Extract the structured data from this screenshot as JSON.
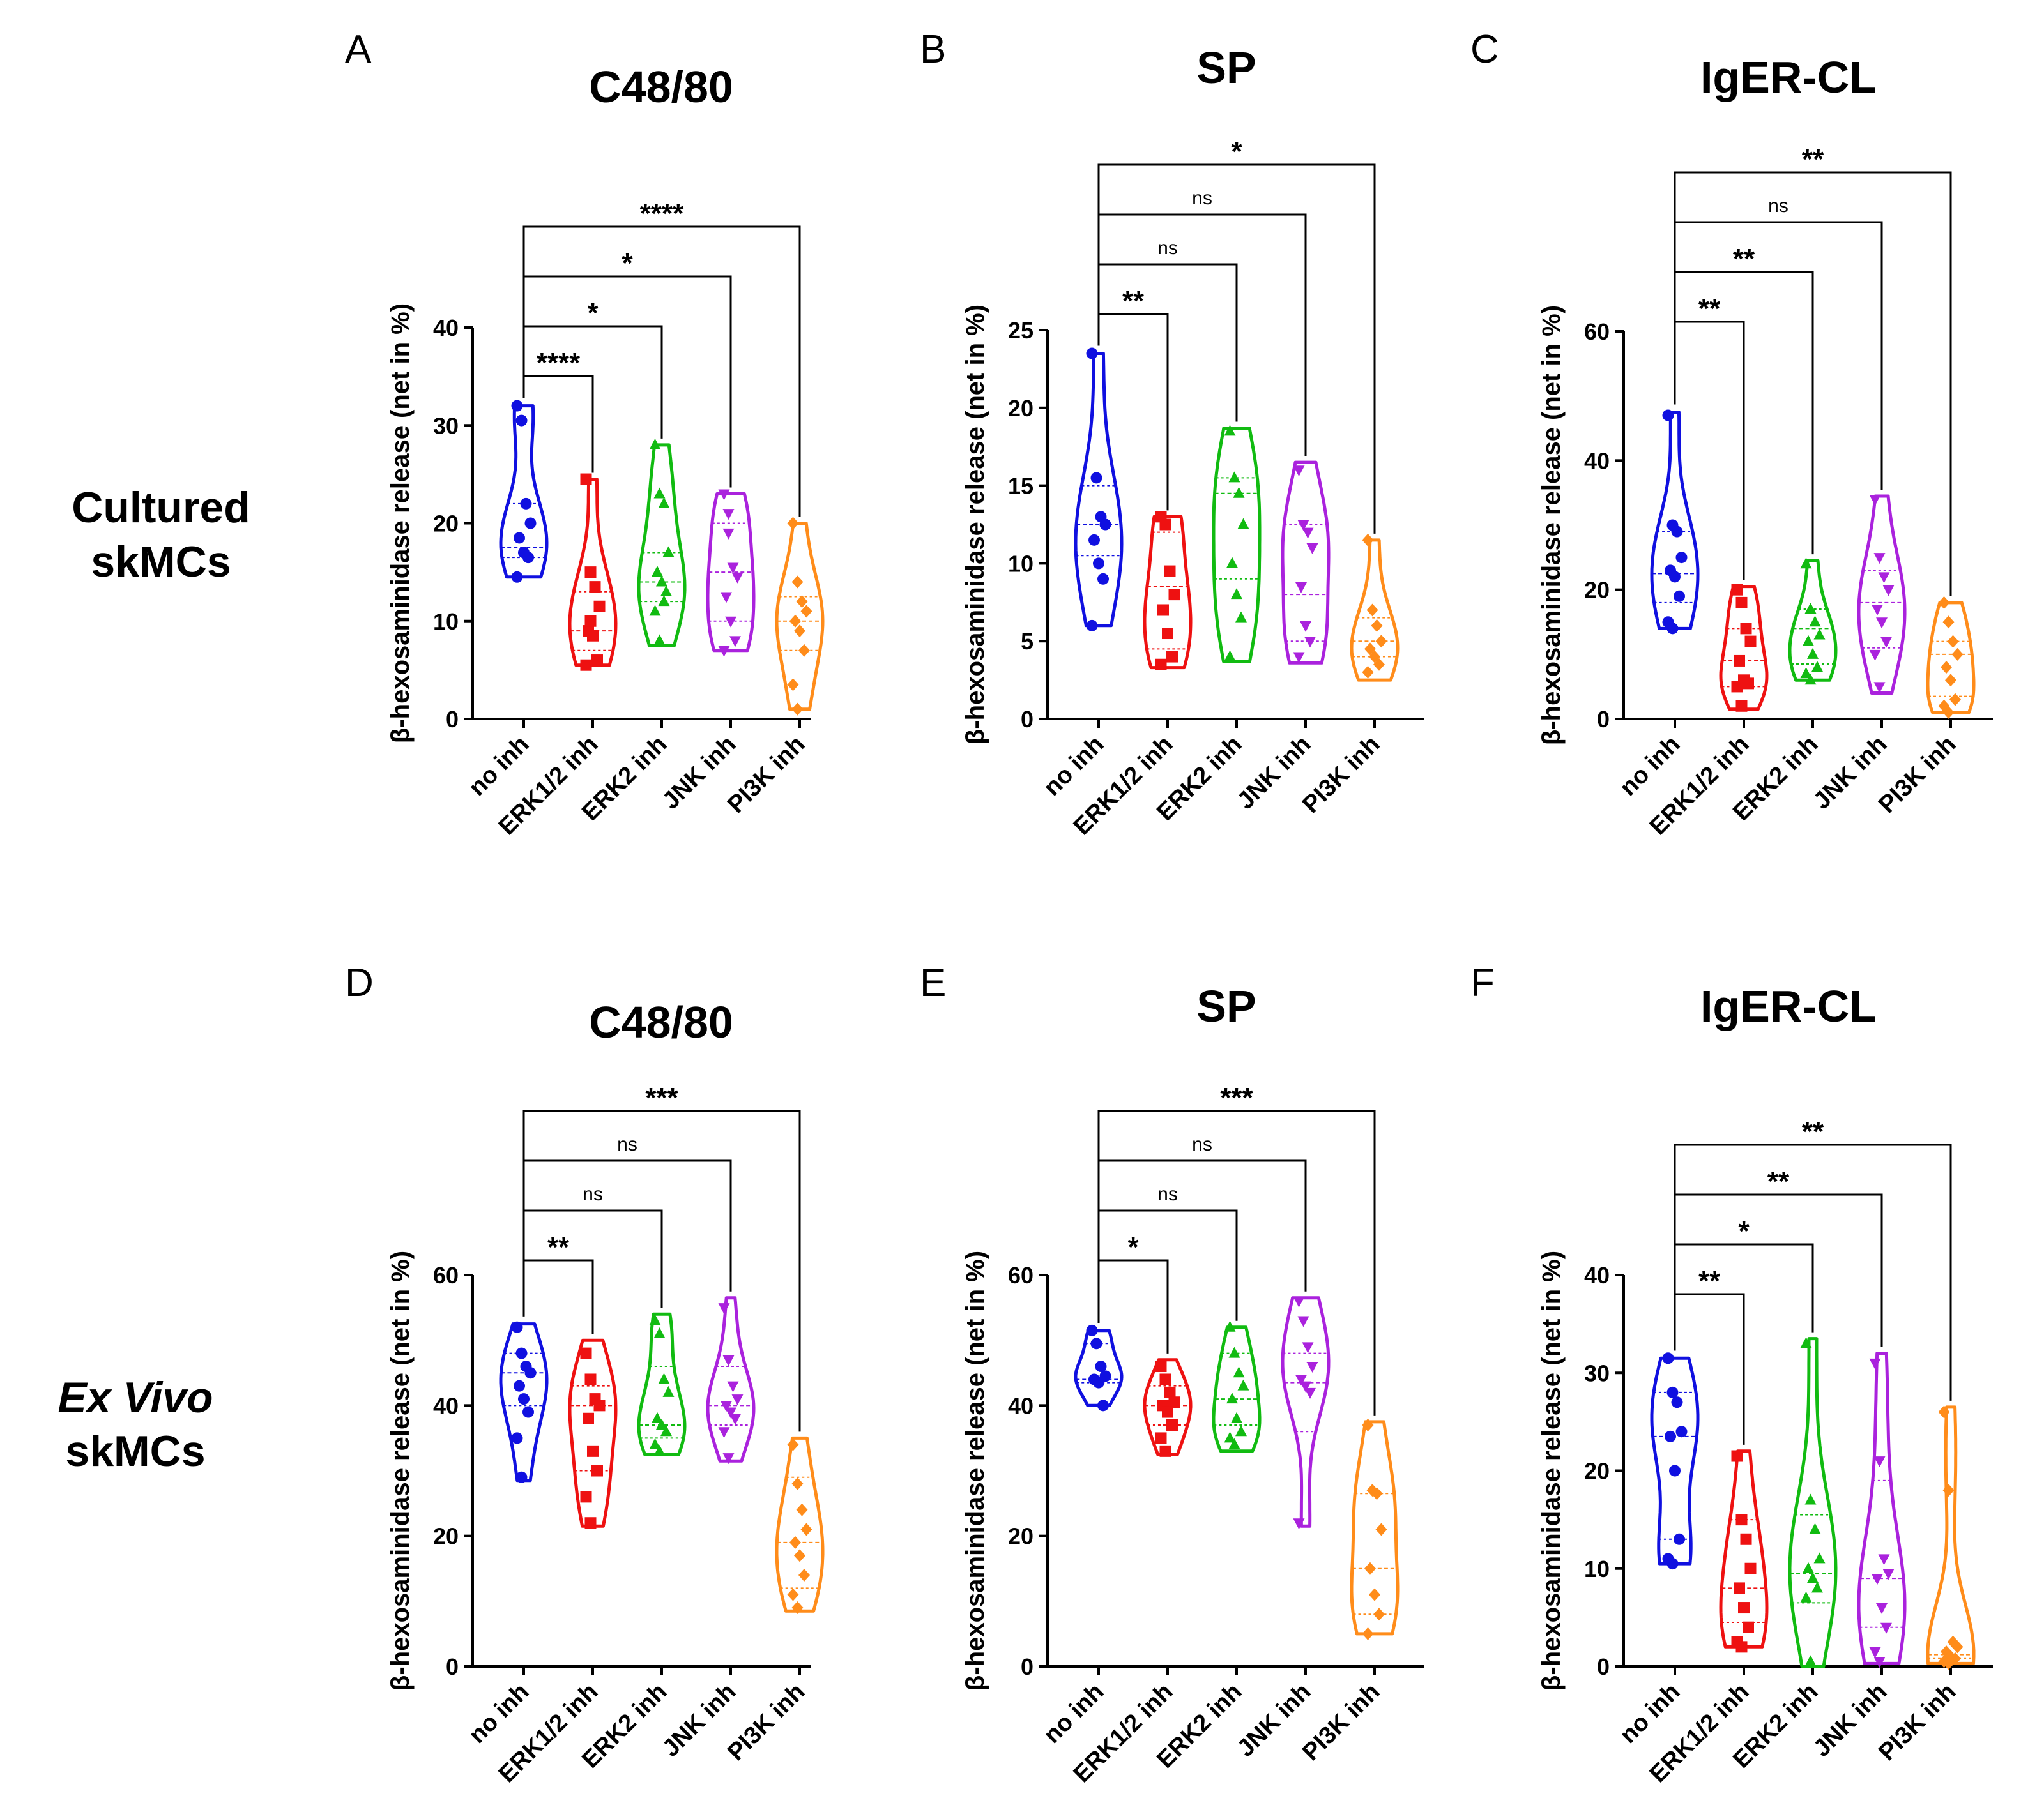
{
  "row_labels": [
    {
      "line1": "Cultured",
      "line2": "skMCs",
      "italic": false
    },
    {
      "line1": "Ex Vivo",
      "line2": "skMCs",
      "italic": true
    }
  ],
  "colors": {
    "no inh": "#1010e0",
    "ERK1/2 inh": "#ee1111",
    "ERK2 inh": "#11bb11",
    "JNK inh": "#aa22dd",
    "PI3K inh": "#ff8c1a"
  },
  "markers": {
    "no inh": "circle",
    "ERK1/2 inh": "square",
    "ERK2 inh": "triangle-up",
    "JNK inh": "triangle-down",
    "PI3K inh": "diamond"
  },
  "chart_data": [
    {
      "panel": "A",
      "title": "C48/80",
      "type": "violin",
      "ylabel": "β-hexosaminidase release (net in %)",
      "ylim": [
        0,
        40
      ],
      "yticks": [
        0,
        10,
        20,
        30,
        40
      ],
      "categories": [
        "no inh",
        "ERK1/2 inh",
        "ERK2 inh",
        "JNK inh",
        "PI3K inh"
      ],
      "series": [
        {
          "name": "no inh",
          "points": [
            32,
            30.5,
            22,
            20,
            18.5,
            17,
            16.5,
            14.5
          ],
          "min": 14.5,
          "max": 32,
          "median": 17.5,
          "q1": 16.5,
          "q3": 22
        },
        {
          "name": "ERK1/2 inh",
          "points": [
            24.5,
            15,
            13.5,
            11.5,
            9,
            8.5,
            6,
            5.5,
            10
          ],
          "min": 5.5,
          "max": 24.5,
          "median": 9,
          "q1": 7,
          "q3": 13
        },
        {
          "name": "ERK2 inh",
          "points": [
            28,
            23,
            22,
            17,
            15,
            14,
            13,
            11,
            8,
            12
          ],
          "min": 7.5,
          "max": 28,
          "median": 14,
          "q1": 12,
          "q3": 17
        },
        {
          "name": "JNK inh",
          "points": [
            23,
            19,
            15.5,
            14.5,
            12.5,
            10,
            8,
            7,
            21
          ],
          "min": 7,
          "max": 23,
          "median": 15,
          "q1": 10,
          "q3": 20
        },
        {
          "name": "PI3K inh",
          "points": [
            20,
            14,
            12,
            11,
            10,
            9,
            7,
            3.5,
            1
          ],
          "min": 1,
          "max": 20,
          "median": 10,
          "q1": 7,
          "q3": 12.5
        }
      ],
      "comparisons": [
        {
          "from": "no inh",
          "to": "ERK1/2 inh",
          "label": "****"
        },
        {
          "from": "no inh",
          "to": "ERK2 inh",
          "label": "*"
        },
        {
          "from": "no inh",
          "to": "JNK inh",
          "label": "*"
        },
        {
          "from": "no inh",
          "to": "PI3K inh",
          "label": "****"
        }
      ]
    },
    {
      "panel": "B",
      "title": "SP",
      "type": "violin",
      "ylabel": "β-hexosaminidase release (net in %)",
      "ylim": [
        0,
        25
      ],
      "yticks": [
        0,
        5,
        10,
        15,
        20,
        25
      ],
      "categories": [
        "no inh",
        "ERK1/2 inh",
        "ERK2 inh",
        "JNK inh",
        "PI3K inh"
      ],
      "series": [
        {
          "name": "no inh",
          "points": [
            23.5,
            15.5,
            13,
            12.5,
            11.5,
            10,
            9,
            6
          ],
          "min": 6,
          "max": 23.5,
          "median": 12.5,
          "q1": 10.5,
          "q3": 15
        },
        {
          "name": "ERK1/2 inh",
          "points": [
            13,
            12.5,
            9.5,
            8,
            7,
            5.5,
            4,
            3.5
          ],
          "min": 3.3,
          "max": 13,
          "median": 8.5,
          "q1": 4.5,
          "q3": 12
        },
        {
          "name": "ERK2 inh",
          "points": [
            18.5,
            15.5,
            14.5,
            12.5,
            10,
            8,
            6.5,
            4
          ],
          "min": 3.7,
          "max": 18.7,
          "median": 14.5,
          "q1": 9,
          "q3": 15.5
        },
        {
          "name": "JNK inh",
          "points": [
            16,
            12.5,
            12,
            11,
            8.5,
            6,
            5,
            4
          ],
          "min": 3.6,
          "max": 16.5,
          "median": 8,
          "q1": 5,
          "q3": 12.5
        },
        {
          "name": "PI3K inh",
          "points": [
            11.5,
            7,
            6,
            5,
            4.5,
            4,
            3.5,
            3
          ],
          "min": 2.5,
          "max": 11.5,
          "median": 5,
          "q1": 4,
          "q3": 6.5
        }
      ],
      "comparisons": [
        {
          "from": "no inh",
          "to": "ERK1/2 inh",
          "label": "**"
        },
        {
          "from": "no inh",
          "to": "ERK2 inh",
          "label": "ns"
        },
        {
          "from": "no inh",
          "to": "JNK inh",
          "label": "ns"
        },
        {
          "from": "no inh",
          "to": "PI3K inh",
          "label": "*"
        }
      ]
    },
    {
      "panel": "C",
      "title": "IgER-CL",
      "type": "violin",
      "ylabel": "β-hexosaminidase release (net in %)",
      "ylim": [
        0,
        60
      ],
      "yticks": [
        0,
        20,
        40,
        60
      ],
      "categories": [
        "no inh",
        "ERK1/2 inh",
        "ERK2 inh",
        "JNK inh",
        "PI3K inh"
      ],
      "series": [
        {
          "name": "no inh",
          "points": [
            47,
            30,
            29,
            25,
            23,
            22,
            19,
            15,
            14
          ],
          "min": 14,
          "max": 47.5,
          "median": 22.5,
          "q1": 18,
          "q3": 29
        },
        {
          "name": "ERK1/2 inh",
          "points": [
            20,
            18,
            14,
            12,
            9,
            6,
            5.5,
            5,
            2
          ],
          "min": 1.5,
          "max": 20.5,
          "median": 9,
          "q1": 5,
          "q3": 14
        },
        {
          "name": "ERK2 inh",
          "points": [
            24,
            17,
            15,
            13,
            12,
            10,
            8,
            7,
            6
          ],
          "min": 6,
          "max": 24.5,
          "median": 14,
          "q1": 8.5,
          "q3": 17
        },
        {
          "name": "JNK inh",
          "points": [
            34,
            25,
            22,
            20,
            17,
            15,
            12,
            10,
            5
          ],
          "min": 4,
          "max": 34.5,
          "median": 18,
          "q1": 11,
          "q3": 23
        },
        {
          "name": "PI3K inh",
          "points": [
            18,
            15,
            12,
            10,
            8,
            6,
            3,
            2,
            1
          ],
          "min": 1,
          "max": 18,
          "median": 10,
          "q1": 3.5,
          "q3": 12
        }
      ],
      "comparisons": [
        {
          "from": "no inh",
          "to": "ERK1/2 inh",
          "label": "**"
        },
        {
          "from": "no inh",
          "to": "ERK2 inh",
          "label": "**"
        },
        {
          "from": "no inh",
          "to": "JNK inh",
          "label": "ns"
        },
        {
          "from": "no inh",
          "to": "PI3K inh",
          "label": "**"
        }
      ]
    },
    {
      "panel": "D",
      "title": "C48/80",
      "type": "violin",
      "ylabel": "β-hexosaminidase release (net in %)",
      "ylim": [
        0,
        60
      ],
      "yticks": [
        0,
        20,
        40,
        60
      ],
      "categories": [
        "no inh",
        "ERK1/2 inh",
        "ERK2 inh",
        "JNK inh",
        "PI3K inh"
      ],
      "series": [
        {
          "name": "no inh",
          "points": [
            52,
            48,
            46,
            45,
            43,
            41,
            39,
            35,
            29
          ],
          "min": 28.5,
          "max": 52.5,
          "median": 45,
          "q1": 40,
          "q3": 48
        },
        {
          "name": "ERK1/2 inh",
          "points": [
            48,
            44,
            41,
            40,
            38,
            33,
            30,
            26,
            22
          ],
          "min": 21.5,
          "max": 50,
          "median": 40,
          "q1": 30,
          "q3": 43
        },
        {
          "name": "ERK2 inh",
          "points": [
            53,
            51,
            44,
            42,
            38,
            37,
            36,
            34,
            33
          ],
          "min": 32.5,
          "max": 54,
          "median": 37,
          "q1": 35,
          "q3": 46
        },
        {
          "name": "JNK inh",
          "points": [
            55,
            47,
            43,
            41,
            40,
            39,
            38,
            36,
            32
          ],
          "min": 31.5,
          "max": 56.5,
          "median": 40,
          "q1": 37,
          "q3": 46
        },
        {
          "name": "PI3K inh",
          "points": [
            34,
            28,
            24,
            21,
            19,
            17,
            14,
            11,
            9
          ],
          "min": 8.5,
          "max": 35,
          "median": 19,
          "q1": 12,
          "q3": 29
        }
      ],
      "comparisons": [
        {
          "from": "no inh",
          "to": "ERK1/2 inh",
          "label": "**"
        },
        {
          "from": "no inh",
          "to": "ERK2 inh",
          "label": "ns"
        },
        {
          "from": "no inh",
          "to": "JNK inh",
          "label": "ns"
        },
        {
          "from": "no inh",
          "to": "PI3K inh",
          "label": "***"
        }
      ]
    },
    {
      "panel": "E",
      "title": "SP",
      "type": "violin",
      "ylabel": "β-hexosaminidase release (net in %)",
      "ylim": [
        0,
        60
      ],
      "yticks": [
        0,
        20,
        40,
        60
      ],
      "categories": [
        "no inh",
        "ERK1/2 inh",
        "ERK2 inh",
        "JNK inh",
        "PI3K inh"
      ],
      "series": [
        {
          "name": "no inh",
          "points": [
            51.5,
            49.5,
            46,
            44.5,
            44,
            43.5,
            40
          ],
          "min": 40,
          "max": 51.5,
          "median": 44,
          "q1": 43.5,
          "q3": 49.5
        },
        {
          "name": "ERK1/2 inh",
          "points": [
            46,
            44,
            42,
            40.5,
            40,
            39,
            37,
            35,
            33
          ],
          "min": 32.5,
          "max": 47,
          "median": 40,
          "q1": 37,
          "q3": 43
        },
        {
          "name": "ERK2 inh",
          "points": [
            52,
            48,
            45,
            43,
            41,
            38,
            36,
            35,
            34
          ],
          "min": 33,
          "max": 52,
          "median": 41,
          "q1": 37,
          "q3": 48
        },
        {
          "name": "JNK inh",
          "points": [
            56,
            53,
            49,
            46,
            44,
            43,
            42,
            22
          ],
          "min": 21.5,
          "max": 56.5,
          "median": 43.5,
          "q1": 36,
          "q3": 48
        },
        {
          "name": "PI3K inh",
          "points": [
            37,
            27,
            26.5,
            21,
            15,
            11,
            8,
            5
          ],
          "min": 5,
          "max": 37.5,
          "median": 15,
          "q1": 8,
          "q3": 26.5
        }
      ],
      "comparisons": [
        {
          "from": "no inh",
          "to": "ERK1/2 inh",
          "label": "*"
        },
        {
          "from": "no inh",
          "to": "ERK2 inh",
          "label": "ns"
        },
        {
          "from": "no inh",
          "to": "JNK inh",
          "label": "ns"
        },
        {
          "from": "no inh",
          "to": "PI3K inh",
          "label": "***"
        }
      ]
    },
    {
      "panel": "F",
      "title": "IgER-CL",
      "type": "violin",
      "ylabel": "β-hexosaminidase release (net in %)",
      "ylim": [
        0,
        40
      ],
      "yticks": [
        0,
        10,
        20,
        30,
        40
      ],
      "categories": [
        "no inh",
        "ERK1/2 inh",
        "ERK2 inh",
        "JNK inh",
        "PI3K inh"
      ],
      "series": [
        {
          "name": "no inh",
          "points": [
            31.5,
            28,
            27,
            24,
            23.5,
            20,
            13,
            11,
            10.5
          ],
          "min": 10.5,
          "max": 31.5,
          "median": 23.5,
          "q1": 13,
          "q3": 28
        },
        {
          "name": "ERK1/2 inh",
          "points": [
            21.5,
            15,
            13,
            10,
            8,
            6,
            4,
            2.5,
            2
          ],
          "min": 2,
          "max": 22,
          "median": 8,
          "q1": 4.5,
          "q3": 15
        },
        {
          "name": "ERK2 inh",
          "points": [
            33,
            17,
            14,
            11,
            10,
            9,
            8,
            7,
            0.5
          ],
          "min": 0,
          "max": 33.5,
          "median": 9.5,
          "q1": 6.5,
          "q3": 15.5
        },
        {
          "name": "JNK inh",
          "points": [
            31,
            21,
            11,
            9.5,
            9,
            6,
            4,
            1.5,
            0.5
          ],
          "min": 0.3,
          "max": 32,
          "median": 9,
          "q1": 4,
          "q3": 19
        },
        {
          "name": "PI3K inh",
          "points": [
            26,
            18,
            2.5,
            2,
            1.5,
            1,
            0.8,
            0.5,
            0.3
          ],
          "min": 0.3,
          "max": 26.5,
          "median": 1.2,
          "q1": 0.8,
          "q3": 18
        }
      ],
      "comparisons": [
        {
          "from": "no inh",
          "to": "ERK1/2 inh",
          "label": "**"
        },
        {
          "from": "no inh",
          "to": "ERK2 inh",
          "label": "*"
        },
        {
          "from": "no inh",
          "to": "JNK inh",
          "label": "**"
        },
        {
          "from": "no inh",
          "to": "PI3K inh",
          "label": "**"
        }
      ]
    }
  ]
}
